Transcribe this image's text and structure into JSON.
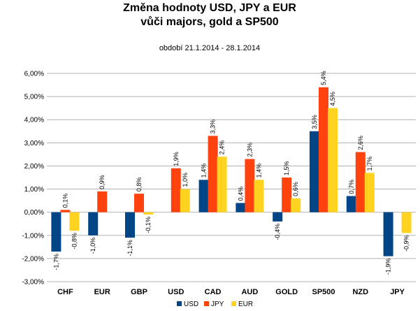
{
  "chart_data": {
    "type": "bar",
    "title_line1": "Změna hodnoty USD, JPY a EUR",
    "title_line2": "vůči majors, gold a SP500",
    "subtitle": "období 21.1.2014 - 28.1.2014",
    "categories": [
      "CHF",
      "EUR",
      "GBP",
      "USD",
      "CAD",
      "AUD",
      "GOLD",
      "SP500",
      "NZD",
      "JPY"
    ],
    "series": [
      {
        "name": "USD",
        "color": "#004586",
        "values": [
          -1.7,
          -1.0,
          -1.1,
          null,
          1.4,
          0.4,
          -0.4,
          3.5,
          0.7,
          -1.9
        ],
        "labels": [
          "-1,7%",
          "-1,0%",
          "-1,1%",
          "",
          "1,4%",
          "0,4%",
          "-0,4%",
          "3,5%",
          "0,7%",
          "-1,9%"
        ]
      },
      {
        "name": "JPY",
        "color": "#ff420e",
        "values": [
          0.1,
          0.9,
          0.8,
          1.9,
          3.3,
          2.3,
          1.5,
          5.4,
          2.6,
          null
        ],
        "labels": [
          "0,1%",
          "0,9%",
          "0,8%",
          "1,9%",
          "3,3%",
          "2,3%",
          "1,5%",
          "5,4%",
          "2,6%",
          ""
        ]
      },
      {
        "name": "EUR",
        "color": "#ffd320",
        "values": [
          -0.8,
          null,
          -0.1,
          1.0,
          2.4,
          1.4,
          0.6,
          4.5,
          1.7,
          -0.9
        ],
        "labels": [
          "-0,8%",
          "",
          "-0,1%",
          "1,0%",
          "2,4%",
          "1,4%",
          "0,6%",
          "4,5%",
          "1,7%",
          "-0,9%"
        ]
      }
    ],
    "ylim": [
      -3.0,
      6.0
    ],
    "yticks": [
      "-3,00%",
      "-2,00%",
      "-1,00%",
      "0,00%",
      "1,00%",
      "2,00%",
      "3,00%",
      "4,00%",
      "5,00%",
      "6,00%"
    ],
    "grid": true,
    "legend_position": "bottom"
  }
}
